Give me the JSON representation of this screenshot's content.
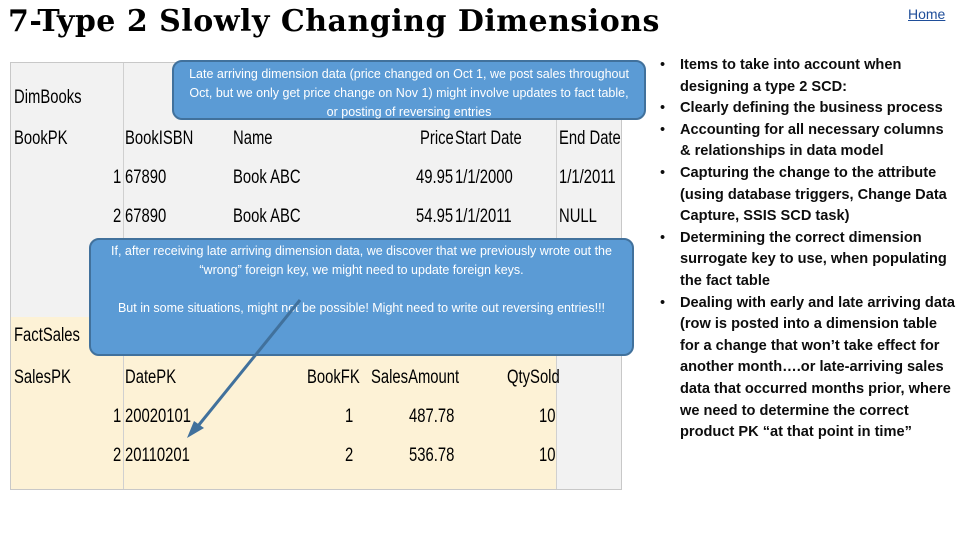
{
  "title": "7-Type 2 Slowly Changing Dimensions",
  "home_link": "Home",
  "dim_table": {
    "name": "DimBooks",
    "headers": [
      "BookPK",
      "BookISBN",
      "Name",
      "Price",
      "Start Date",
      "End Date"
    ],
    "rows": [
      [
        "1",
        "67890",
        "Book ABC",
        "49.95",
        "1/1/2000",
        "1/1/2011"
      ],
      [
        "2",
        "67890",
        "Book ABC",
        "54.95",
        "1/1/2011",
        "NULL"
      ]
    ]
  },
  "fact_table": {
    "name": "FactSales",
    "headers": [
      "SalesPK",
      "DatePK",
      "BookFK",
      "SalesAmount",
      "QtySold"
    ],
    "rows": [
      [
        "1",
        "20020101",
        "1",
        "487.78",
        "10"
      ],
      [
        "2",
        "20110201",
        "2",
        "536.78",
        "10"
      ]
    ]
  },
  "callout_top": "Late arriving dimension data (price changed on Oct 1, we post sales throughout Oct, but we only get price change on Nov 1) might involve updates to fact table, or posting of reversing entries",
  "callout_mid": {
    "p1": "If, after receiving late arriving dimension data, we discover that we previously wrote out the “wrong” foreign key, we might need to update foreign keys.",
    "p2": "But in some situations, might not be possible!  Might need to write out reversing entries!!!"
  },
  "bullets": [
    "Items to take into account when designing a type 2 SCD:",
    "Clearly defining the business process",
    "Accounting for all necessary columns & relationships in data model",
    "Capturing the change to the attribute (using database triggers, Change Data Capture, SSIS SCD task)",
    "Determining the correct dimension surrogate key to use, when populating the fact table",
    "Dealing with early and late arriving data (row is posted into a dimension table for a change that won’t take effect for another month….or late-arriving sales data that occurred months prior, where we need to determine the correct product PK “at that point in time”"
  ],
  "colors": {
    "callout_fill": "#5b9bd5",
    "callout_border": "#41719c",
    "fact_fill": "#fdf2d6",
    "sheet_fill": "#f2f2f2",
    "link": "#1f4e9a"
  }
}
